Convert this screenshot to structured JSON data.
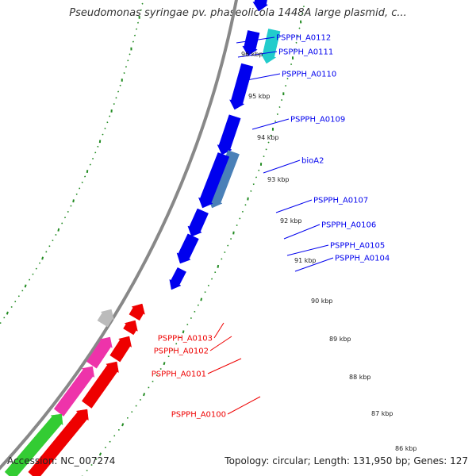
{
  "title": "Pseudomonas syringae pv. phaseolicola 1448A large plasmid, c...",
  "footer": {
    "accession": "Accession: NC_007274",
    "summary": "Topology: circular; Length: 131,950 bp; Genes: 127"
  },
  "colors": {
    "forward_gene": "#0000ee",
    "cyan_gene": "#22cccc",
    "steelblue_gene": "#4a80b8",
    "reverse_gene": "#ee0000",
    "magenta_gene": "#ee33aa",
    "green_gene": "#33cc33",
    "grey_gene": "#bbbbbb",
    "backbone": "#888888",
    "tick_green": "#228B22"
  },
  "kbp_ticks": [
    "96 kbp",
    "95 kbp",
    "94 kbp",
    "93 kbp",
    "92 kbp",
    "91 kbp",
    "90 kbp",
    "89 kbp",
    "88 kbp",
    "87 kbp",
    "86 kbp"
  ],
  "gene_labels": [
    {
      "text": "PSPPH_A0112",
      "strand": "forward"
    },
    {
      "text": "PSPPH_A0111",
      "strand": "forward"
    },
    {
      "text": "PSPPH_A0110",
      "strand": "forward"
    },
    {
      "text": "PSPPH_A0109",
      "strand": "forward"
    },
    {
      "text": "bioA2",
      "strand": "forward"
    },
    {
      "text": "PSPPH_A0107",
      "strand": "forward"
    },
    {
      "text": "PSPPH_A0106",
      "strand": "forward"
    },
    {
      "text": "PSPPH_A0105",
      "strand": "forward"
    },
    {
      "text": "PSPPH_A0104",
      "strand": "forward"
    },
    {
      "text": "PSPPH_A0103",
      "strand": "reverse"
    },
    {
      "text": "PSPPH_A0102",
      "strand": "reverse"
    },
    {
      "text": "PSPPH_A0101",
      "strand": "reverse"
    },
    {
      "text": "PSPPH_A0100",
      "strand": "reverse"
    }
  ]
}
